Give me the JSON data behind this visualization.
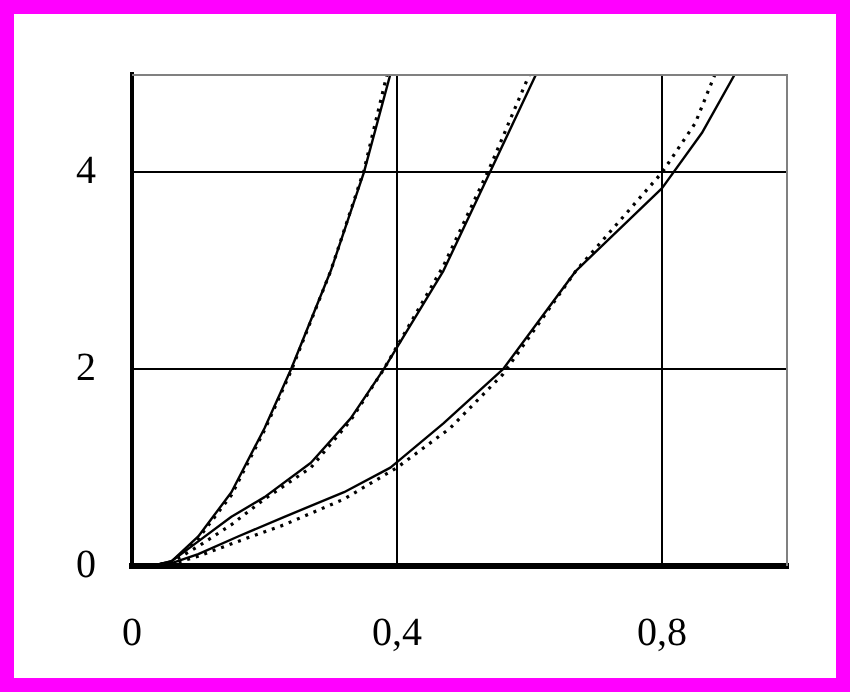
{
  "chart_data": {
    "type": "line",
    "xlim": [
      0,
      0.99
    ],
    "xticks": [
      0,
      {
        "value": 0.4,
        "label": "0,4"
      },
      {
        "value": 0.8,
        "label": "0,8"
      }
    ],
    "ylim": [
      0,
      5
    ],
    "yticks": [
      0,
      2,
      4
    ],
    "grid": true,
    "legend": false,
    "marker": "none",
    "series": [
      {
        "color": "#000000",
        "line_style": "solid",
        "x": [
          0.03,
          0.06,
          0.1,
          0.15,
          0.2,
          0.24,
          0.3,
          0.35,
          0.39
        ],
        "values": [
          0,
          0.05,
          0.3,
          0.75,
          1.4,
          2.0,
          3.0,
          4.0,
          5.0
        ]
      },
      {
        "color": "#000000",
        "line_style": "dotted",
        "x": [
          0.03,
          0.06,
          0.1,
          0.15,
          0.2,
          0.24,
          0.3,
          0.35,
          0.385
        ],
        "values": [
          0,
          0.04,
          0.28,
          0.72,
          1.38,
          1.98,
          3.0,
          4.02,
          5.0
        ]
      },
      {
        "color": "#000000",
        "line_style": "solid",
        "x": [
          0.03,
          0.06,
          0.1,
          0.15,
          0.2,
          0.27,
          0.33,
          0.38,
          0.47,
          0.54,
          0.61
        ],
        "values": [
          0,
          0.05,
          0.25,
          0.5,
          0.7,
          1.05,
          1.5,
          2.0,
          3.0,
          4.0,
          5.0
        ]
      },
      {
        "color": "#000000",
        "line_style": "dotted",
        "x": [
          0.03,
          0.06,
          0.1,
          0.15,
          0.2,
          0.27,
          0.33,
          0.38,
          0.47,
          0.54,
          0.6
        ],
        "values": [
          0,
          0.04,
          0.2,
          0.42,
          0.68,
          1.0,
          1.48,
          2.0,
          3.05,
          4.05,
          5.0
        ]
      },
      {
        "color": "#000000",
        "line_style": "solid",
        "x": [
          0.03,
          0.06,
          0.1,
          0.16,
          0.23,
          0.32,
          0.39,
          0.47,
          0.56,
          0.67,
          0.8,
          0.86,
          0.91
        ],
        "values": [
          0,
          0.03,
          0.12,
          0.3,
          0.5,
          0.75,
          1.0,
          1.45,
          2.0,
          3.0,
          3.84,
          4.4,
          5.0
        ]
      },
      {
        "color": "#000000",
        "line_style": "dotted",
        "x": [
          0.03,
          0.06,
          0.1,
          0.16,
          0.23,
          0.32,
          0.4,
          0.48,
          0.56,
          0.67,
          0.8,
          0.85,
          0.88
        ],
        "values": [
          0,
          0.02,
          0.1,
          0.25,
          0.42,
          0.68,
          1.0,
          1.4,
          1.95,
          3.0,
          4.0,
          4.5,
          5.0
        ]
      }
    ]
  }
}
